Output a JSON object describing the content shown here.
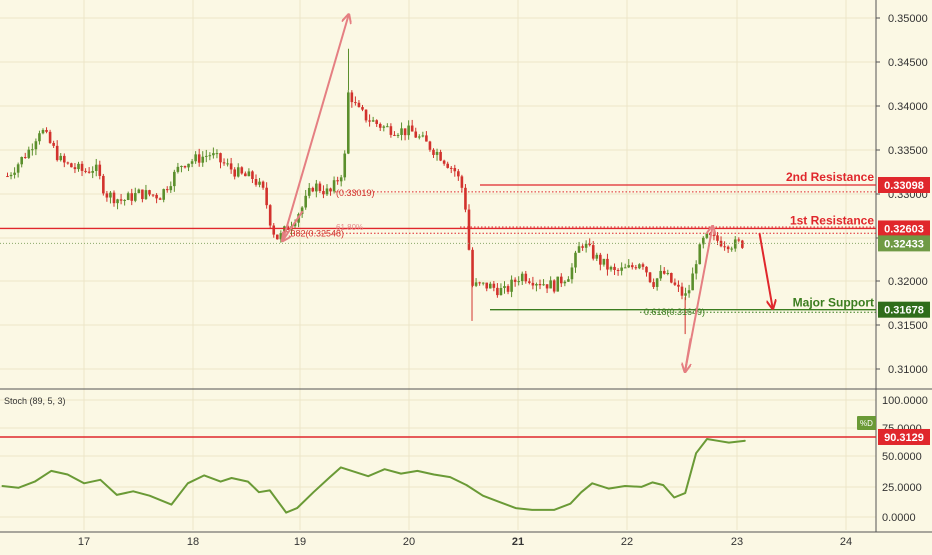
{
  "chart_data": [
    {
      "type": "candlestick",
      "ylim": [
        0.3075,
        0.3525
      ],
      "y_ticks": [
        "0.35000",
        "0.34500",
        "0.34000",
        "0.33500",
        "0.33000",
        "0.32500",
        "0.32000",
        "0.31500",
        "0.31000"
      ],
      "x_ticks": [
        "17",
        "18",
        "19",
        "20",
        "21",
        "22",
        "23",
        "24"
      ],
      "grid": true,
      "colors": {
        "up": "#5b8f2c",
        "down": "#d2322d",
        "arrow": "#e57f82",
        "resistance": "#e0272c",
        "support": "#3b7d1f",
        "price_badge": "#6f9a45"
      },
      "levels": [
        {
          "label": "2nd Resistance",
          "value": 0.33098,
          "badge": "0.33098",
          "color": "#e0272c"
        },
        {
          "label": "1st Resistance",
          "value": 0.32603,
          "badge": "0.32603",
          "color": "#e0272c"
        },
        {
          "label": "Major Support",
          "value": 0.31678,
          "badge": "0.31678",
          "color": "#3b7d1f"
        }
      ],
      "fib_levels": [
        {
          "label": "(0.33019)",
          "value": 0.33019
        },
        {
          "label": "0.382(0.32548)",
          "value": 0.32548
        },
        {
          "label": "61.80%",
          "value": 0.3262
        },
        {
          "label": "0.618(0.31649)",
          "value": 0.31649
        }
      ],
      "current_price": {
        "value": 0.32433,
        "badge": "0.32433"
      },
      "price_path": [
        [
          16.3,
          0.332
        ],
        [
          16.5,
          0.335
        ],
        [
          16.6,
          0.3375
        ],
        [
          16.8,
          0.3335
        ],
        [
          17.0,
          0.3325
        ],
        [
          17.1,
          0.333
        ],
        [
          17.2,
          0.33
        ],
        [
          17.35,
          0.3292
        ],
        [
          17.5,
          0.33
        ],
        [
          17.7,
          0.3298
        ],
        [
          17.9,
          0.3335
        ],
        [
          18.0,
          0.3338
        ],
        [
          18.15,
          0.3345
        ],
        [
          18.3,
          0.3332
        ],
        [
          18.45,
          0.332
        ],
        [
          18.55,
          0.3318
        ],
        [
          18.65,
          0.33
        ],
        [
          18.72,
          0.326
        ],
        [
          18.78,
          0.3248
        ],
        [
          18.85,
          0.326
        ],
        [
          19.0,
          0.3285
        ],
        [
          19.1,
          0.331
        ],
        [
          19.25,
          0.33
        ],
        [
          19.38,
          0.333
        ],
        [
          19.42,
          0.3418
        ],
        [
          19.5,
          0.3395
        ],
        [
          19.6,
          0.3385
        ],
        [
          19.75,
          0.3375
        ],
        [
          19.9,
          0.3372
        ],
        [
          20.0,
          0.337
        ],
        [
          20.1,
          0.336
        ],
        [
          20.25,
          0.3345
        ],
        [
          20.4,
          0.3325
        ],
        [
          20.48,
          0.33
        ],
        [
          20.55,
          0.3195
        ],
        [
          20.7,
          0.3195
        ],
        [
          20.85,
          0.3188
        ],
        [
          21.0,
          0.3208
        ],
        [
          21.15,
          0.32
        ],
        [
          21.3,
          0.3195
        ],
        [
          21.45,
          0.321
        ],
        [
          21.55,
          0.3245
        ],
        [
          21.7,
          0.3225
        ],
        [
          21.85,
          0.321
        ],
        [
          22.0,
          0.3215
        ],
        [
          22.1,
          0.3225
        ],
        [
          22.2,
          0.3198
        ],
        [
          22.3,
          0.321
        ],
        [
          22.4,
          0.3195
        ],
        [
          22.5,
          0.3182
        ],
        [
          22.55,
          0.3195
        ],
        [
          22.6,
          0.3225
        ],
        [
          22.68,
          0.325
        ],
        [
          22.75,
          0.3248
        ],
        [
          22.85,
          0.3245
        ],
        [
          22.95,
          0.3242
        ],
        [
          23.05,
          0.3244
        ]
      ],
      "arrows": [
        {
          "from": [
            18.82,
            0.3247
          ],
          "to": [
            19.42,
            0.3503
          ]
        },
        {
          "from": [
            22.5,
            0.3098
          ],
          "to": [
            22.75,
            0.3262
          ]
        },
        {
          "from": [
            23.18,
            0.3255
          ],
          "to": [
            23.3,
            0.317
          ]
        }
      ]
    },
    {
      "type": "line",
      "label": "Stoch (89, 5, 3)",
      "series": [
        {
          "name": "%D",
          "color": "#6a9a36"
        }
      ],
      "ylim": [
        -5,
        100
      ],
      "y_ticks": [
        "100.0000",
        "75.0000",
        "50.0000",
        "25.0000",
        "0.0000"
      ],
      "levels": [
        {
          "value": 90.3129,
          "badge": "90.3129",
          "color": "#e0272c"
        }
      ],
      "x": [
        16.25,
        16.4,
        16.55,
        16.7,
        16.85,
        17.0,
        17.15,
        17.3,
        17.45,
        17.6,
        17.8,
        17.95,
        18.1,
        18.25,
        18.35,
        18.5,
        18.6,
        18.7,
        18.85,
        18.95,
        19.1,
        19.25,
        19.35,
        19.5,
        19.6,
        19.75,
        19.9,
        20.05,
        20.2,
        20.35,
        20.5,
        20.65,
        20.8,
        20.95,
        21.1,
        21.3,
        21.45,
        21.55,
        21.65,
        21.8,
        21.95,
        22.1,
        22.2,
        22.3,
        22.4,
        22.5,
        22.6,
        22.7,
        22.8,
        22.9,
        23.05
      ],
      "values": [
        35,
        33,
        40,
        52,
        48,
        38,
        42,
        25,
        29,
        24,
        14,
        38,
        47,
        40,
        44,
        40,
        28,
        30,
        5,
        10,
        28,
        45,
        56,
        50,
        46,
        54,
        49,
        52,
        48,
        45,
        36,
        24,
        17,
        10,
        8,
        8,
        15,
        28,
        38,
        32,
        35,
        34,
        39,
        36,
        22,
        27,
        72,
        88,
        86,
        84,
        86
      ]
    }
  ]
}
